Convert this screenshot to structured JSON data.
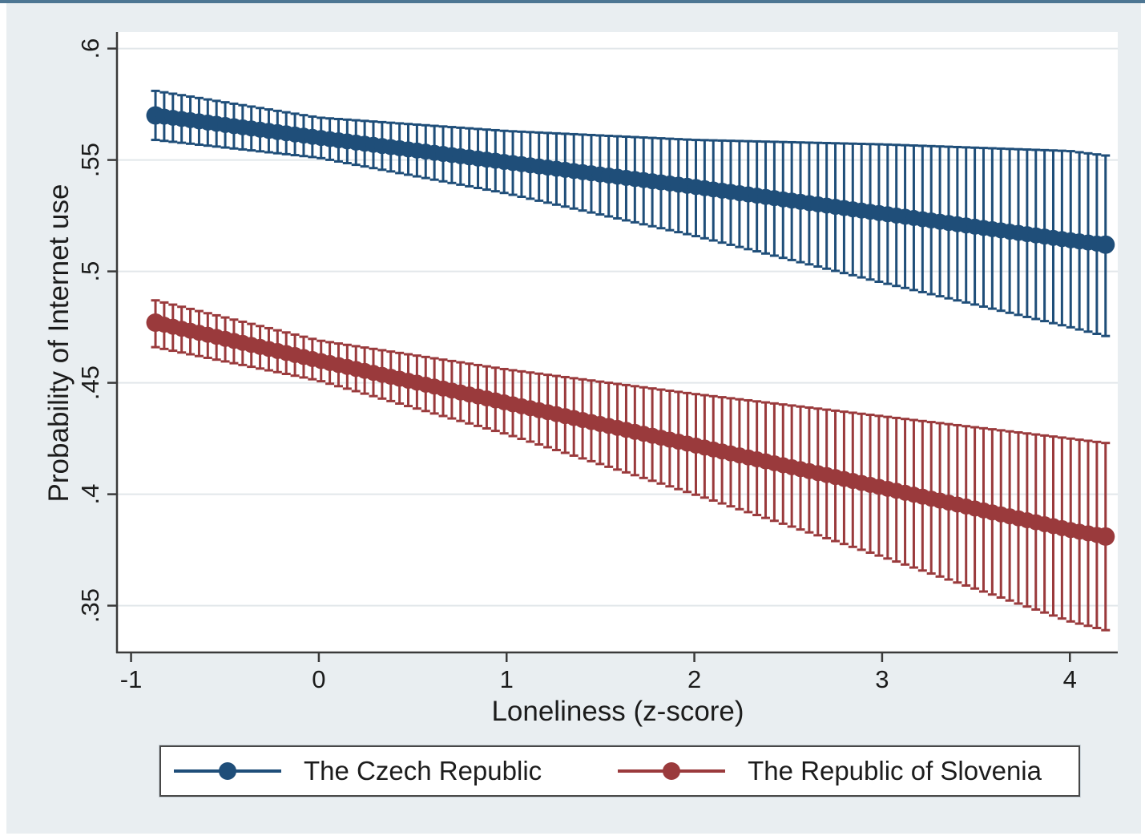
{
  "figure": {
    "top_border_color": "#4d7693",
    "panel_bg": "#e9eef1",
    "plot_bg": "#ffffff",
    "grid_color": "#e2e7ea",
    "axis_color": "#3a3a3a",
    "text_color": "#1c1c1c",
    "legend_border_color": "#474747"
  },
  "chart_data": {
    "type": "line",
    "title": "",
    "xlabel": "Loneliness (z-score)",
    "ylabel": "Probability of Internet use",
    "xlim": [
      -1.075,
      4.255
    ],
    "ylim": [
      0.329,
      0.6074
    ],
    "grid": "horizontal gridlines at y ticks, no vertical gridlines",
    "legend_position": "bottom",
    "x_ticks": [
      {
        "v": -1,
        "label": "-1"
      },
      {
        "v": 0,
        "label": "0"
      },
      {
        "v": 1,
        "label": "1"
      },
      {
        "v": 2,
        "label": "2"
      },
      {
        "v": 3,
        "label": "3"
      },
      {
        "v": 4,
        "label": "4"
      }
    ],
    "y_ticks": [
      {
        "v": 0.6,
        "label": ".6"
      },
      {
        "v": 0.55,
        "label": ".55"
      },
      {
        "v": 0.5,
        "label": ".5"
      },
      {
        "v": 0.45,
        "label": ".45"
      },
      {
        "v": 0.4,
        "label": ".4"
      },
      {
        "v": 0.35,
        "label": ".35"
      }
    ],
    "series": [
      {
        "name": "The Czech Republic",
        "color": "#1f4e79",
        "marker": "filled-circle",
        "error_bars": "capped vertical 95% CI bars at each prediction point",
        "n_error_bars": 110,
        "anchors": [
          {
            "x": -0.87,
            "y": 0.57,
            "lo": 0.559,
            "hi": 0.581
          },
          {
            "x": 0,
            "y": 0.56,
            "lo": 0.551,
            "hi": 0.569
          },
          {
            "x": 1,
            "y": 0.549,
            "lo": 0.535,
            "hi": 0.563
          },
          {
            "x": 2,
            "y": 0.538,
            "lo": 0.516,
            "hi": 0.559
          },
          {
            "x": 3,
            "y": 0.526,
            "lo": 0.495,
            "hi": 0.557
          },
          {
            "x": 4,
            "y": 0.514,
            "lo": 0.475,
            "hi": 0.554
          },
          {
            "x": 4.19,
            "y": 0.512,
            "lo": 0.471,
            "hi": 0.552
          }
        ]
      },
      {
        "name": "The Republic of Slovenia",
        "color": "#9a3a3c",
        "marker": "filled-circle",
        "error_bars": "capped vertical 95% CI bars at each prediction point",
        "n_error_bars": 110,
        "anchors": [
          {
            "x": -0.87,
            "y": 0.477,
            "lo": 0.466,
            "hi": 0.487
          },
          {
            "x": 0,
            "y": 0.46,
            "lo": 0.451,
            "hi": 0.469
          },
          {
            "x": 1,
            "y": 0.441,
            "lo": 0.427,
            "hi": 0.456
          },
          {
            "x": 2,
            "y": 0.422,
            "lo": 0.4,
            "hi": 0.445
          },
          {
            "x": 3,
            "y": 0.403,
            "lo": 0.372,
            "hi": 0.435
          },
          {
            "x": 4,
            "y": 0.384,
            "lo": 0.343,
            "hi": 0.425
          },
          {
            "x": 4.19,
            "y": 0.381,
            "lo": 0.339,
            "hi": 0.423
          }
        ]
      }
    ]
  }
}
